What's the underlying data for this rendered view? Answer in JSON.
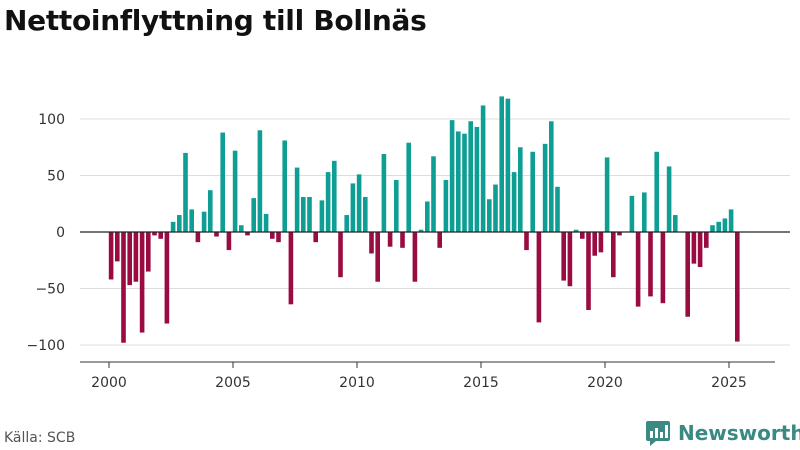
{
  "title": "Nettoinflyttning till Bollnäs",
  "source": "Källa: SCB",
  "brand": "Newsworthy",
  "colors": {
    "positive": "#0f9e94",
    "negative": "#9a0b42",
    "grid": "#dddddd",
    "zero_line": "#222222",
    "brand": "#3a8a83"
  },
  "chart_data": {
    "type": "bar",
    "title": "Nettoinflyttning till Bollnäs",
    "xlabel": "",
    "ylabel": "",
    "x_ticks": [
      2000,
      2005,
      2010,
      2015,
      2020,
      2025
    ],
    "x_tick_labels": [
      "2000",
      "2005",
      "2010",
      "2015",
      "2020",
      "2025"
    ],
    "y_ticks": [
      -100,
      -50,
      0,
      50,
      100
    ],
    "y_tick_labels": [
      "−100",
      "−50",
      "0",
      "50",
      "100"
    ],
    "ylim": [
      -110,
      125
    ],
    "xlim": [
      1999.2,
      2026.9
    ],
    "grid": true,
    "series": [
      {
        "name": "Nettoinflyttning",
        "frequency": "quarterly",
        "start": 2000.0,
        "values": [
          -42,
          -26,
          -98,
          -47,
          -44,
          -89,
          -35,
          -3,
          -6,
          -81,
          9,
          15,
          70,
          20,
          -9,
          18,
          37,
          -4,
          88,
          -16,
          72,
          6,
          -3,
          30,
          90,
          16,
          -6,
          -9,
          81,
          -64,
          57,
          31,
          31,
          -9,
          28,
          53,
          63,
          -40,
          15,
          43,
          51,
          31,
          -19,
          -44,
          69,
          -13,
          46,
          -14,
          79,
          -44,
          2,
          27,
          67,
          -14,
          46,
          99,
          89,
          87,
          98,
          93,
          112,
          29,
          42,
          120,
          118,
          53,
          75,
          -16,
          71,
          -80,
          78,
          98,
          40,
          -43,
          -48,
          2,
          -6,
          -69,
          -21,
          -18,
          66,
          -40,
          -3,
          0,
          32,
          -66,
          35,
          -57,
          71,
          -63,
          58,
          15,
          0,
          -75,
          -28,
          -31,
          -14,
          6,
          9,
          12,
          20,
          -97
        ]
      }
    ]
  }
}
